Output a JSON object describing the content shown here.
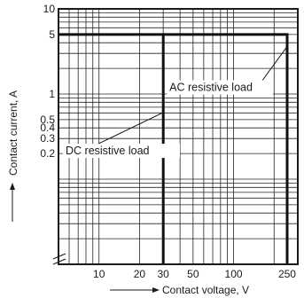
{
  "chart_data": {
    "type": "line",
    "xlabel": "Contact voltage, V",
    "ylabel": "Contact current, A",
    "x_scale": "log",
    "y_scale": "log",
    "xlim": [
      5,
      300
    ],
    "ylim": [
      0.01,
      10
    ],
    "x_ticks": [
      {
        "value": 10,
        "label": "10"
      },
      {
        "value": 20,
        "label": "20"
      },
      {
        "value": 30,
        "label": "30"
      },
      {
        "value": 50,
        "label": "50"
      },
      {
        "value": 100,
        "label": "100"
      },
      {
        "value": 250,
        "label": "250"
      }
    ],
    "y_ticks": [
      {
        "value": 10,
        "label": "10"
      },
      {
        "value": 5,
        "label": "5"
      },
      {
        "value": 1,
        "label": "1"
      },
      {
        "value": 0.5,
        "label": "0.5"
      },
      {
        "value": 0.4,
        "label": "0.4"
      },
      {
        "value": 0.3,
        "label": "0.3"
      },
      {
        "value": 0.2,
        "label": "0.2"
      }
    ],
    "grid": true,
    "series": [
      {
        "name": "DC resistive load",
        "x": [
          5,
          30,
          30
        ],
        "y": [
          5,
          5,
          0.01
        ]
      },
      {
        "name": "AC resistive load",
        "x": [
          30,
          250,
          250
        ],
        "y": [
          5,
          5,
          0.01
        ]
      }
    ],
    "annotations": [
      {
        "text": "AC resistive load",
        "target": [
          250,
          3.5
        ]
      },
      {
        "text": "DC resistive load",
        "target": [
          30,
          0.6
        ]
      }
    ]
  }
}
